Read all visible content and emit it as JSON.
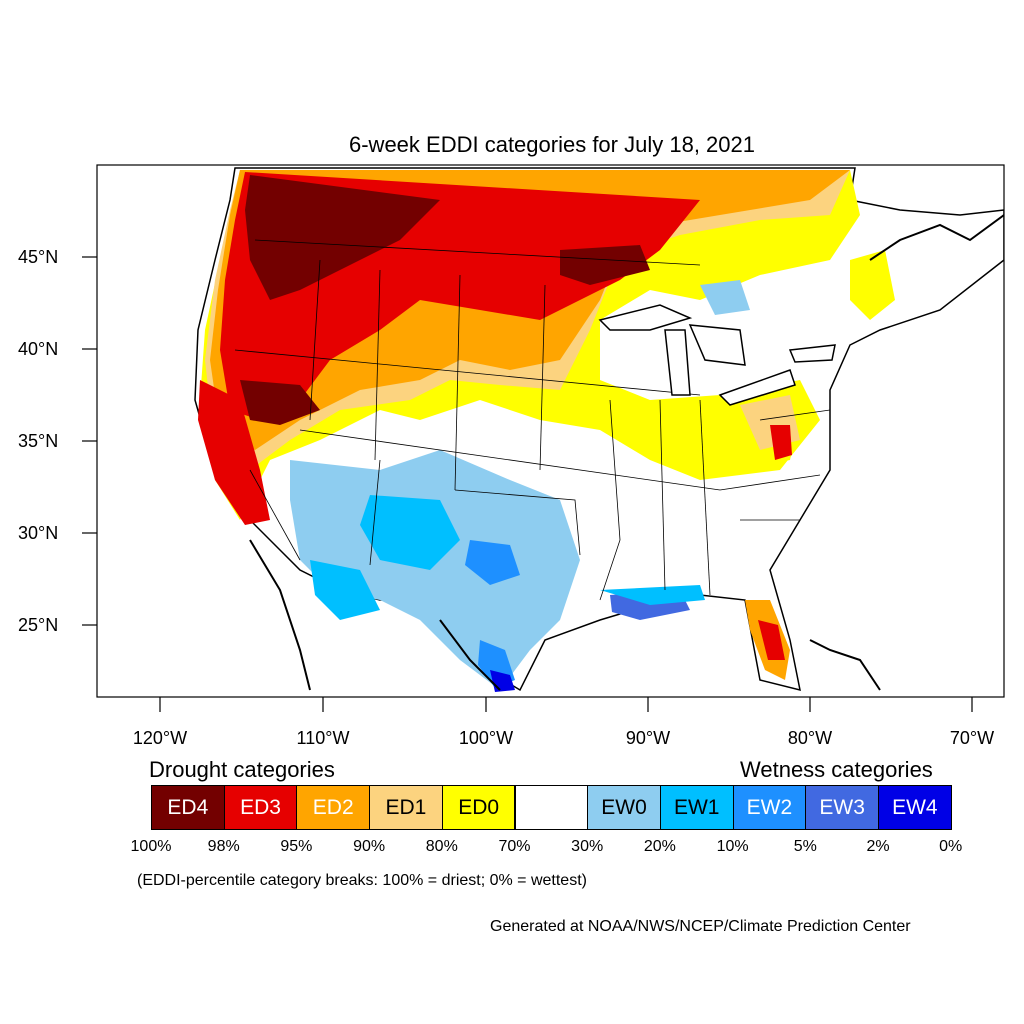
{
  "title": "6-week EDDI categories for July 18, 2021",
  "lat_labels": [
    "45°N",
    "40°N",
    "35°N",
    "30°N",
    "25°N"
  ],
  "lon_labels": [
    "120°W",
    "110°W",
    "100°W",
    "90°W",
    "80°W",
    "70°W"
  ],
  "drought_heading": "Drought categories",
  "wetness_heading": "Wetness categories",
  "legend": [
    {
      "label": "ED4",
      "color": "#730000",
      "text_color": "#ffffff"
    },
    {
      "label": "ED3",
      "color": "#e60000",
      "text_color": "#ffffff"
    },
    {
      "label": "ED2",
      "color": "#ffa500",
      "text_color": "#ffffff"
    },
    {
      "label": "ED1",
      "color": "#fcd37f",
      "text_color": "#000000"
    },
    {
      "label": "ED0",
      "color": "#ffff00",
      "text_color": "#000000"
    },
    {
      "label": "",
      "color": "#ffffff",
      "text_color": "#000000"
    },
    {
      "label": "EW0",
      "color": "#8ecdf0",
      "text_color": "#000000"
    },
    {
      "label": "EW1",
      "color": "#00bfff",
      "text_color": "#000000"
    },
    {
      "label": "EW2",
      "color": "#1e90ff",
      "text_color": "#ffffff"
    },
    {
      "label": "EW3",
      "color": "#4169e1",
      "text_color": "#ffffff"
    },
    {
      "label": "EW4",
      "color": "#0000e6",
      "text_color": "#ffffff"
    }
  ],
  "percentiles": [
    "100%",
    "98%",
    "95%",
    "90%",
    "80%",
    "70%",
    "30%",
    "20%",
    "10%",
    "5%",
    "2%",
    "0%"
  ],
  "note": "(EDDI-percentile category breaks: 100% = driest; 0% = wettest)",
  "credit": "Generated at NOAA/NWS/NCEP/Climate Prediction Center",
  "icons": [
    "map-frame"
  ]
}
